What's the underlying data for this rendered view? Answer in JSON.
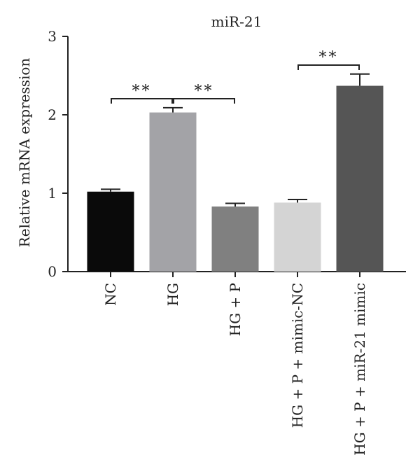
{
  "chart_data": {
    "type": "bar",
    "title": "miR-21",
    "ylabel": "Relative mRNA expression",
    "xlabel": "",
    "ylim": [
      0,
      3
    ],
    "yticks": [
      0,
      1,
      2,
      3
    ],
    "grid": false,
    "categories": [
      "NC",
      "HG",
      "HG + P",
      "HG + P + mimic-NC",
      "HG + P + miR-21 mimic"
    ],
    "values": [
      1.02,
      2.03,
      0.83,
      0.88,
      2.37
    ],
    "errors": [
      0.03,
      0.06,
      0.04,
      0.04,
      0.15
    ],
    "colors": [
      "#0a0a0a",
      "#a3a3a7",
      "#808080",
      "#d4d4d4",
      "#555555"
    ],
    "significance": [
      {
        "from": 0,
        "to": 1,
        "label": "**"
      },
      {
        "from": 1,
        "to": 2,
        "label": "**"
      },
      {
        "from": 3,
        "to": 4,
        "label": "**"
      }
    ]
  }
}
